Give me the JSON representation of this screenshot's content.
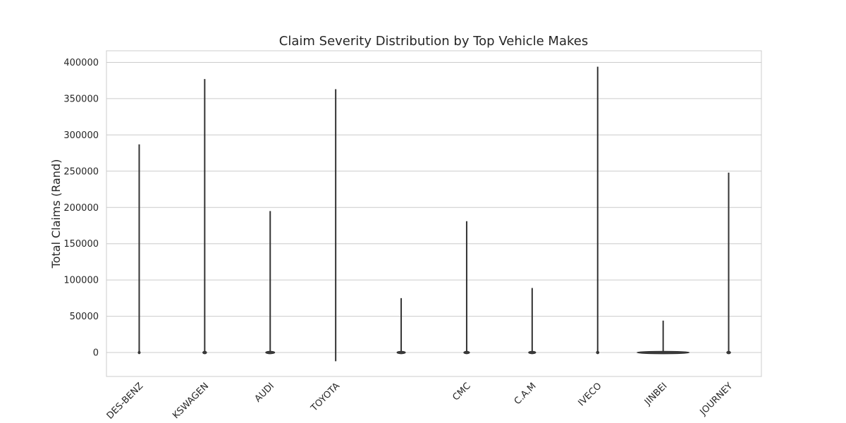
{
  "chart_data": {
    "type": "violin",
    "title": "Claim Severity Distribution by Top Vehicle Makes",
    "xlabel": "",
    "ylabel": "Total Claims (Rand)",
    "ylim": [
      -33000,
      416000
    ],
    "yticks": [
      0,
      50000,
      100000,
      150000,
      200000,
      250000,
      300000,
      350000,
      400000
    ],
    "ytick_labels": [
      "0",
      "50000",
      "100000",
      "150000",
      "200000",
      "250000",
      "300000",
      "350000",
      "400000"
    ],
    "grid": true,
    "x_tick_rotation": -45,
    "categories": [
      "MERCEDES-BENZ",
      "VOLKSWAGEN",
      "AUDI",
      "TOYOTA",
      "",
      "CMC",
      "C.A.M",
      "IVECO",
      "JINBEI",
      "GWM JOURNEY"
    ],
    "category_labels_visible": [
      "DES-BENZ",
      "KSWAGEN",
      "AUDI",
      "TOYOTA",
      "",
      "CMC",
      "C.A.M",
      "IVECO",
      "JINBEI",
      "JOURNEY"
    ],
    "series": [
      {
        "category": "MERCEDES-BENZ",
        "min": 0,
        "max": 287000,
        "bulk_width": 0.02
      },
      {
        "category": "VOLKSWAGEN",
        "min": 0,
        "max": 377000,
        "bulk_width": 0.06
      },
      {
        "category": "AUDI",
        "min": 0,
        "max": 195000,
        "bulk_width": 0.14
      },
      {
        "category": "TOYOTA",
        "min": -12000,
        "max": 363000,
        "bulk_width": 0.0
      },
      {
        "category": "",
        "min": 0,
        "max": 75000,
        "bulk_width": 0.13
      },
      {
        "category": "CMC",
        "min": 0,
        "max": 181000,
        "bulk_width": 0.09
      },
      {
        "category": "C.A.M",
        "min": 0,
        "max": 89000,
        "bulk_width": 0.11
      },
      {
        "category": "IVECO",
        "min": 0,
        "max": 394000,
        "bulk_width": 0.04
      },
      {
        "category": "JINBEI",
        "min": 0,
        "max": 44000,
        "bulk_width": 0.8
      },
      {
        "category": "GWM JOURNEY",
        "min": 0,
        "max": 248000,
        "bulk_width": 0.06
      }
    ]
  }
}
